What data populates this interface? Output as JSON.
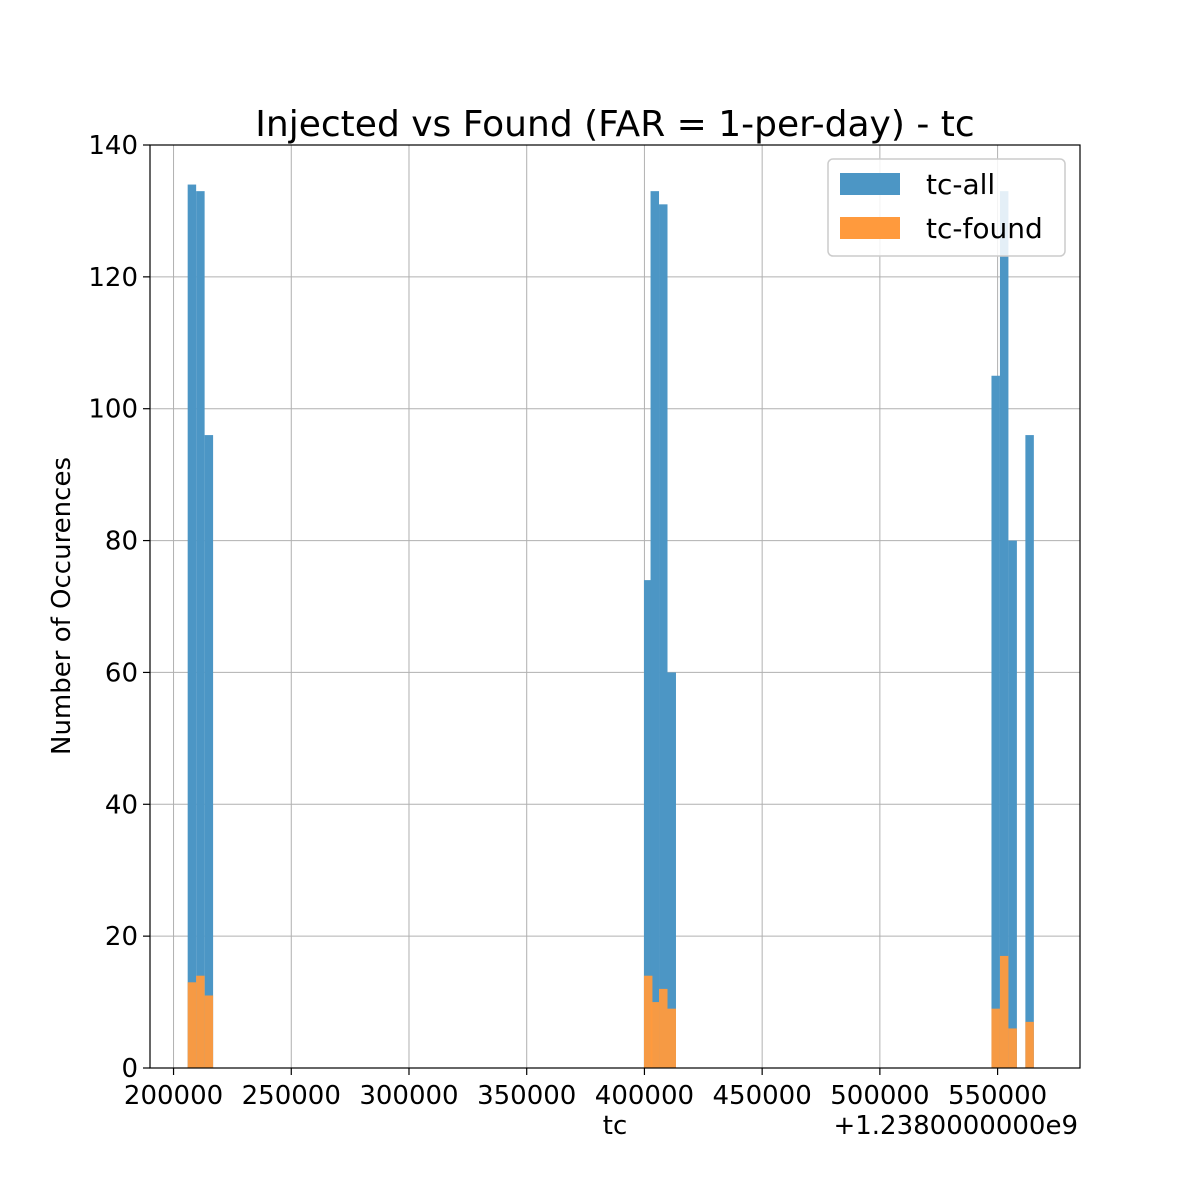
{
  "chart_data": {
    "type": "bar",
    "title": "Injected vs Found (FAR = 1-per-day) - tc",
    "xlabel": "tc",
    "ylabel": "Number of Occurences",
    "x_offset_label": "+1.2380000000e9",
    "xlim": [
      190000,
      585000
    ],
    "ylim": [
      0,
      140
    ],
    "x_ticks": [
      200000,
      250000,
      300000,
      350000,
      400000,
      450000,
      500000,
      550000
    ],
    "x_tick_labels": [
      "200000",
      "250000",
      "300000",
      "350000",
      "400000",
      "450000",
      "500000",
      "550000"
    ],
    "y_ticks": [
      0,
      20,
      40,
      60,
      80,
      100,
      120,
      140
    ],
    "y_tick_labels": [
      "0",
      "20",
      "40",
      "60",
      "80",
      "100",
      "120",
      "140"
    ],
    "grid": true,
    "legend_position": "top-right",
    "bin_width": 3600,
    "series": [
      {
        "name": "tc-all",
        "color": "#4c96c5",
        "bins": [
          {
            "x0": 206000,
            "value": 134
          },
          {
            "x0": 209600,
            "value": 133
          },
          {
            "x0": 213200,
            "value": 96
          },
          {
            "x0": 399800,
            "value": 74
          },
          {
            "x0": 402600,
            "value": 133
          },
          {
            "x0": 406200,
            "value": 131
          },
          {
            "x0": 409800,
            "value": 60
          },
          {
            "x0": 547400,
            "value": 105
          },
          {
            "x0": 551000,
            "value": 133
          },
          {
            "x0": 554600,
            "value": 80
          },
          {
            "x0": 561800,
            "value": 96
          }
        ]
      },
      {
        "name": "tc-found",
        "color": "#ff9a3d",
        "bins": [
          {
            "x0": 206000,
            "value": 13
          },
          {
            "x0": 209600,
            "value": 14
          },
          {
            "x0": 213200,
            "value": 11
          },
          {
            "x0": 399800,
            "value": 14
          },
          {
            "x0": 402600,
            "value": 10
          },
          {
            "x0": 406200,
            "value": 12
          },
          {
            "x0": 409800,
            "value": 9
          },
          {
            "x0": 547400,
            "value": 9
          },
          {
            "x0": 551000,
            "value": 17
          },
          {
            "x0": 554600,
            "value": 6
          },
          {
            "x0": 561800,
            "value": 7
          }
        ]
      }
    ]
  }
}
